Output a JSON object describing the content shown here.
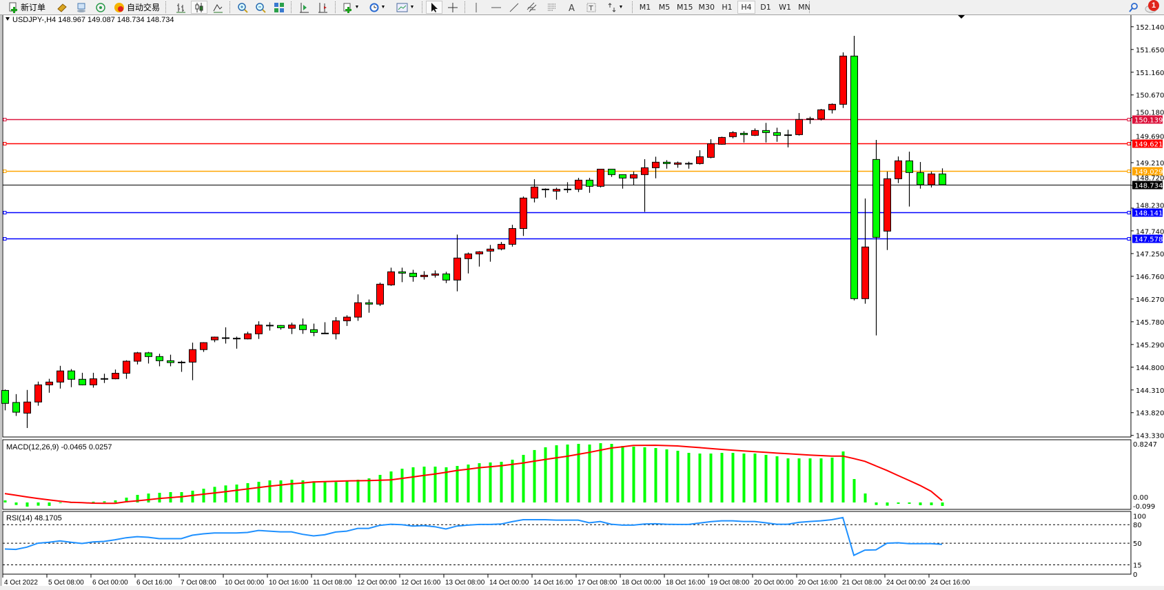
{
  "toolbar": {
    "new_order_label": "新订单",
    "auto_trading_label": "自动交易",
    "timeframes": [
      "M1",
      "M5",
      "M15",
      "M30",
      "H1",
      "H4",
      "D1",
      "W1",
      "MN"
    ],
    "active_timeframe": "H4",
    "notification_count": "1",
    "icons": [
      "new-order-icon",
      "gold-icon",
      "terminal-icon",
      "signals-icon",
      "auto-trading-icon",
      "bar-chart-icon",
      "candlestick-icon",
      "line-chart-icon",
      "zoom-in-icon",
      "zoom-out-icon",
      "tile-windows-icon",
      "auto-scroll-icon",
      "chart-shift-icon",
      "indicators-icon",
      "periods-icon",
      "templates-icon",
      "cursor-icon",
      "crosshair-icon",
      "vertical-line-icon",
      "horizontal-line-icon",
      "trendline-icon",
      "equidistant-channel-icon",
      "fibonacci-icon",
      "text-icon",
      "text-label-icon",
      "arrows-icon",
      "search-icon",
      "chat-icon"
    ]
  },
  "chart_data": {
    "type": "candlestick",
    "symbol_header": "USDJPY-,H4  148.967 149.087 148.734 148.734",
    "up_color": "#FF0000",
    "down_color": "#00FF00",
    "ylim": [
      143.33,
      152.14
    ],
    "y_ticks": [
      "152.140",
      "151.650",
      "151.160",
      "150.670",
      "150.180",
      "149.690",
      "149.210",
      "148.720",
      "148.230",
      "147.740",
      "147.250",
      "146.760",
      "146.270",
      "145.780",
      "145.290",
      "144.800",
      "144.310",
      "143.820",
      "143.330"
    ],
    "x_labels": [
      "4 Oct 2022",
      "5 Oct 08:00",
      "6 Oct 00:00",
      "6 Oct 16:00",
      "7 Oct 08:00",
      "10 Oct 00:00",
      "10 Oct 16:00",
      "11 Oct 08:00",
      "12 Oct 00:00",
      "12 Oct 16:00",
      "13 Oct 08:00",
      "14 Oct 00:00",
      "14 Oct 16:00",
      "17 Oct 08:00",
      "18 Oct 00:00",
      "18 Oct 16:00",
      "19 Oct 08:00",
      "20 Oct 00:00",
      "20 Oct 16:00",
      "21 Oct 08:00",
      "24 Oct 00:00",
      "24 Oct 16:00"
    ],
    "candles_ohlc": [
      [
        144.3,
        144.32,
        143.87,
        144.02
      ],
      [
        144.04,
        144.22,
        143.75,
        143.83
      ],
      [
        143.81,
        144.31,
        143.49,
        144.05
      ],
      [
        144.05,
        144.49,
        143.97,
        144.42
      ],
      [
        144.42,
        144.55,
        144.25,
        144.48
      ],
      [
        144.48,
        144.83,
        144.34,
        144.72
      ],
      [
        144.72,
        144.76,
        144.37,
        144.54
      ],
      [
        144.54,
        144.68,
        144.41,
        144.42
      ],
      [
        144.42,
        144.68,
        144.36,
        144.55
      ],
      [
        144.55,
        144.66,
        144.46,
        144.555
      ],
      [
        144.55,
        144.75,
        144.54,
        144.67
      ],
      [
        144.67,
        144.95,
        144.55,
        144.93
      ],
      [
        144.93,
        145.13,
        144.86,
        145.11
      ],
      [
        145.11,
        145.13,
        144.88,
        145.03
      ],
      [
        145.03,
        145.09,
        144.82,
        144.94
      ],
      [
        144.94,
        145.07,
        144.82,
        144.9
      ],
      [
        144.9,
        144.94,
        144.7,
        144.91
      ],
      [
        144.91,
        145.33,
        144.52,
        145.18
      ],
      [
        145.18,
        145.34,
        145.13,
        145.33
      ],
      [
        145.39,
        145.46,
        145.34,
        145.45
      ],
      [
        145.43,
        145.66,
        145.31,
        145.435
      ],
      [
        145.42,
        145.46,
        145.2,
        145.425
      ],
      [
        145.41,
        145.565,
        145.4,
        145.52
      ],
      [
        145.52,
        145.79,
        145.41,
        145.71
      ],
      [
        145.7,
        145.77,
        145.59,
        145.705
      ],
      [
        145.7,
        145.71,
        145.61,
        145.65
      ],
      [
        145.64,
        145.76,
        145.515,
        145.71
      ],
      [
        145.71,
        145.85,
        145.52,
        145.61
      ],
      [
        145.61,
        145.74,
        145.47,
        145.55
      ],
      [
        145.535,
        145.77,
        145.525,
        145.53
      ],
      [
        145.52,
        145.88,
        145.4,
        145.8
      ],
      [
        145.8,
        145.92,
        145.69,
        145.88
      ],
      [
        145.88,
        146.37,
        145.8,
        146.19
      ],
      [
        146.19,
        146.26,
        145.975,
        146.16
      ],
      [
        146.16,
        146.625,
        146.12,
        146.59
      ],
      [
        146.575,
        146.946,
        146.555,
        146.857
      ],
      [
        146.857,
        146.946,
        146.634,
        146.827
      ],
      [
        146.827,
        146.9,
        146.644,
        146.753
      ],
      [
        146.753,
        146.87,
        146.69,
        146.783
      ],
      [
        146.783,
        146.887,
        146.733,
        146.812
      ],
      [
        146.812,
        146.857,
        146.614,
        146.679
      ],
      [
        146.679,
        147.659,
        146.436,
        147.154
      ],
      [
        147.14,
        147.273,
        146.822,
        147.243
      ],
      [
        147.243,
        147.303,
        146.97,
        147.288
      ],
      [
        147.303,
        147.436,
        147.075,
        147.347
      ],
      [
        147.35,
        147.5,
        147.32,
        147.45
      ],
      [
        147.45,
        147.87,
        147.4,
        147.79
      ],
      [
        147.79,
        148.48,
        147.63,
        148.447
      ],
      [
        148.447,
        148.853,
        148.353,
        148.685
      ],
      [
        148.64,
        148.655,
        148.457,
        148.635
      ],
      [
        148.596,
        148.67,
        148.412,
        148.635
      ],
      [
        148.635,
        148.788,
        148.56,
        148.64
      ],
      [
        148.635,
        148.883,
        148.576,
        148.833
      ],
      [
        148.833,
        148.883,
        148.56,
        148.7
      ],
      [
        148.7,
        149.07,
        148.675,
        149.07
      ],
      [
        149.07,
        149.075,
        148.903,
        148.952
      ],
      [
        148.952,
        148.955,
        148.65,
        148.878
      ],
      [
        148.878,
        149.02,
        148.734,
        148.952
      ],
      [
        148.952,
        149.284,
        148.15,
        149.1
      ],
      [
        149.1,
        149.338,
        148.873,
        149.22
      ],
      [
        149.22,
        149.264,
        149.08,
        149.19
      ],
      [
        149.175,
        149.234,
        149.1,
        149.205
      ],
      [
        149.19,
        149.23,
        149.08,
        149.195
      ],
      [
        149.19,
        149.477,
        149.17,
        149.338
      ],
      [
        149.324,
        149.715,
        149.304,
        149.616
      ],
      [
        149.606,
        149.77,
        149.596,
        149.754
      ],
      [
        149.77,
        149.888,
        149.735,
        149.858
      ],
      [
        149.843,
        149.888,
        149.645,
        149.814
      ],
      [
        149.799,
        149.948,
        149.784,
        149.903
      ],
      [
        149.903,
        150.067,
        149.645,
        149.858
      ],
      [
        149.858,
        149.963,
        149.66,
        149.799
      ],
      [
        149.81,
        149.918,
        149.54,
        149.805
      ],
      [
        149.814,
        150.28,
        149.794,
        150.141
      ],
      [
        150.14,
        150.2,
        150.047,
        150.16
      ],
      [
        150.151,
        150.369,
        150.12,
        150.349
      ],
      [
        150.349,
        150.487,
        150.27,
        150.468
      ],
      [
        150.468,
        151.587,
        150.389,
        151.508
      ],
      [
        151.508,
        151.944,
        146.24,
        146.278
      ],
      [
        146.278,
        148.437,
        146.169,
        147.392
      ],
      [
        149.279,
        149.7,
        145.485,
        147.6
      ],
      [
        147.734,
        149.017,
        147.327,
        148.863
      ],
      [
        148.863,
        149.343,
        148.769,
        149.249
      ],
      [
        149.249,
        149.447,
        148.264,
        148.997
      ],
      [
        148.997,
        149.224,
        148.65,
        148.734
      ],
      [
        148.734,
        149.017,
        148.675,
        148.967
      ],
      [
        148.967,
        149.087,
        148.734,
        148.734
      ]
    ],
    "price_lines": [
      {
        "value": "150.139",
        "color": "#DC143C"
      },
      {
        "value": "149.621",
        "color": "#FF0000"
      },
      {
        "value": "149.029",
        "color": "#FFA500"
      },
      {
        "value": "148.734",
        "color": "#000000"
      },
      {
        "value": "148.141",
        "color": "#0000FF"
      },
      {
        "value": "147.578",
        "color": "#0000FF"
      }
    ],
    "macd": {
      "label": "MACD(12,26,9) -0.0465 0.0257",
      "ylim": [
        -0.099,
        0.8247
      ],
      "y_ticks": [
        "0.8247",
        "0.00",
        "-0.099"
      ],
      "histogram_color": "#00FF00",
      "signal_color": "#FF0000",
      "histogram": [
        0.028,
        -0.034,
        -0.056,
        -0.043,
        -0.046,
        -0.006,
        0.002,
        0.003,
        0.01,
        0.015,
        0.028,
        0.065,
        0.102,
        0.12,
        0.13,
        0.139,
        0.139,
        0.158,
        0.185,
        0.21,
        0.229,
        0.241,
        0.26,
        0.278,
        0.297,
        0.297,
        0.306,
        0.297,
        0.285,
        0.285,
        0.275,
        0.287,
        0.306,
        0.324,
        0.371,
        0.417,
        0.454,
        0.473,
        0.482,
        0.482,
        0.473,
        0.491,
        0.51,
        0.528,
        0.538,
        0.547,
        0.575,
        0.64,
        0.705,
        0.742,
        0.769,
        0.779,
        0.788,
        0.779,
        0.797,
        0.788,
        0.76,
        0.751,
        0.742,
        0.732,
        0.714,
        0.695,
        0.667,
        0.658,
        0.658,
        0.667,
        0.667,
        0.658,
        0.658,
        0.64,
        0.621,
        0.593,
        0.593,
        0.593,
        0.593,
        0.603,
        0.686,
        0.315,
        0.121,
        -0.034,
        -0.043,
        -0.018,
        -0.018,
        -0.037,
        -0.037,
        -0.0465
      ],
      "signal": [
        0.12,
        0.097,
        0.074,
        0.054,
        0.034,
        0.018,
        0.003,
        -0.003,
        -0.009,
        -0.011,
        -0.012,
        0.009,
        0.022,
        0.037,
        0.053,
        0.065,
        0.077,
        0.094,
        0.111,
        0.128,
        0.145,
        0.163,
        0.182,
        0.2,
        0.219,
        0.234,
        0.25,
        0.262,
        0.275,
        0.281,
        0.285,
        0.29,
        0.292,
        0.294,
        0.298,
        0.303,
        0.323,
        0.343,
        0.363,
        0.383,
        0.406,
        0.43,
        0.448,
        0.467,
        0.48,
        0.494,
        0.512,
        0.531,
        0.555,
        0.578,
        0.6,
        0.621,
        0.648,
        0.674,
        0.703,
        0.732,
        0.749,
        0.766,
        0.768,
        0.769,
        0.765,
        0.76,
        0.749,
        0.738,
        0.726,
        0.714,
        0.703,
        0.692,
        0.683,
        0.674,
        0.664,
        0.655,
        0.646,
        0.637,
        0.63,
        0.624,
        0.624,
        0.59,
        0.553,
        0.491,
        0.43,
        0.362,
        0.297,
        0.229,
        0.151,
        0.0257
      ]
    },
    "rsi": {
      "label": "RSI(14) 48.1705",
      "ylim": [
        0,
        100
      ],
      "y_ticks": [
        "100",
        "80",
        "50",
        "15",
        "0"
      ],
      "levels": [
        80,
        50,
        15
      ],
      "line_color": "#1E90FF",
      "values": [
        40.7,
        40.0,
        43.7,
        50.0,
        51.5,
        53.7,
        51.5,
        49.6,
        52.2,
        53.0,
        55.6,
        58.9,
        60.7,
        59.6,
        57.4,
        57.4,
        57.4,
        63.0,
        65.2,
        66.7,
        66.7,
        66.7,
        67.4,
        70.7,
        69.6,
        68.5,
        68.5,
        64.4,
        61.9,
        63.7,
        68.1,
        69.6,
        74.0,
        74.0,
        78.9,
        80.7,
        80.0,
        77.8,
        78.5,
        76.7,
        73.0,
        77.8,
        79.3,
        80.4,
        80.4,
        81.1,
        84.8,
        88.1,
        88.1,
        88.1,
        87.4,
        87.4,
        87.4,
        83.0,
        85.2,
        80.7,
        79.3,
        79.3,
        81.1,
        81.5,
        80.7,
        80.4,
        80.4,
        82.6,
        84.8,
        86.3,
        86.3,
        85.2,
        85.2,
        83.0,
        80.7,
        80.7,
        83.7,
        85.2,
        86.3,
        88.1,
        91.5,
        30.4,
        38.9,
        39.3,
        50.0,
        50.7,
        49.3,
        49.3,
        49.3,
        48.1705
      ]
    }
  }
}
